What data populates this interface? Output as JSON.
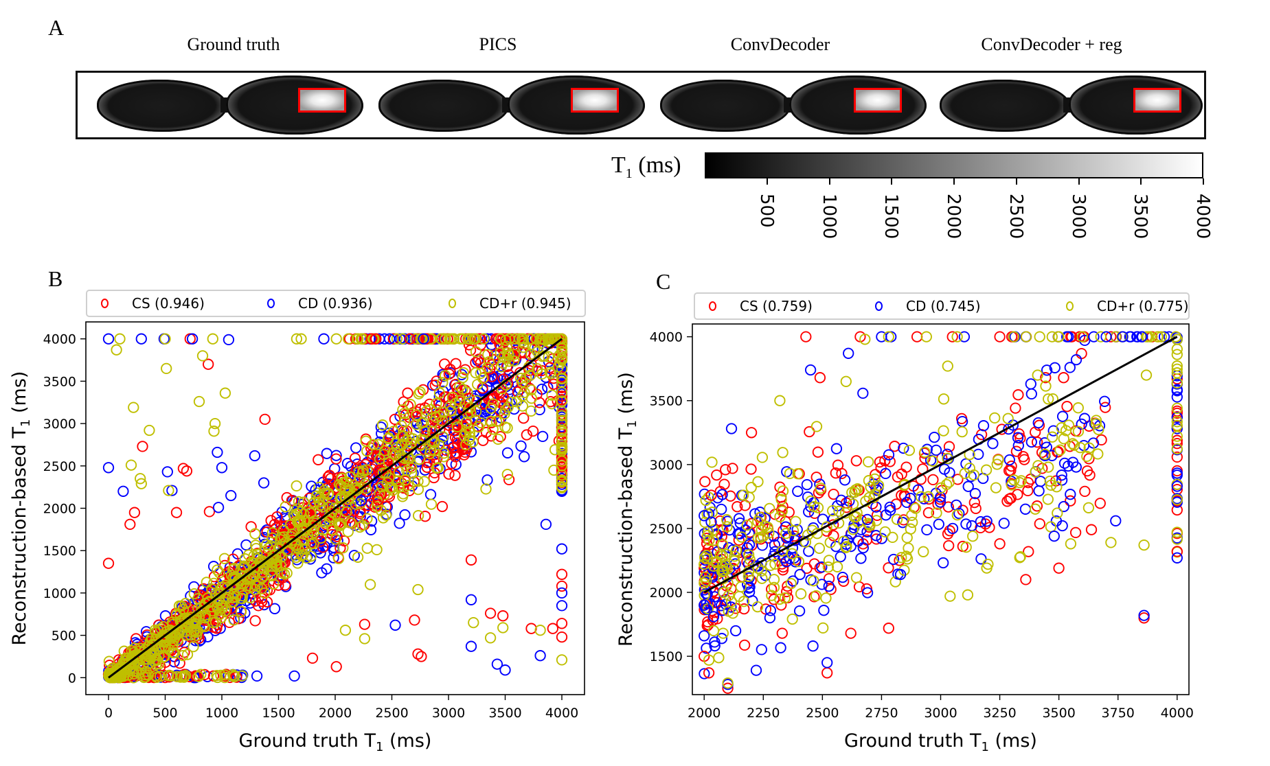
{
  "panel_a": {
    "letter": "A",
    "titles": [
      "Ground truth",
      "PICS",
      "ConvDecoder",
      "ConvDecoder + reg"
    ],
    "colorbar": {
      "label_main": "T",
      "label_sub": "1",
      "label_unit": "(ms)",
      "ticks": [
        "500",
        "1000",
        "1500",
        "2000",
        "2500",
        "3000",
        "3500",
        "4000"
      ],
      "range": [
        0,
        4000
      ],
      "colormap": "gray"
    },
    "roi_color": "#ff0000"
  },
  "chart_data": [
    {
      "panel": "B",
      "type": "scatter",
      "title": "",
      "xlabel": "Ground truth T1 (ms)",
      "ylabel": "Reconstruction-based T1 (ms)",
      "xlim": [
        -200,
        4200
      ],
      "ylim": [
        -200,
        4200
      ],
      "xticks": [
        0,
        500,
        1000,
        1500,
        2000,
        2500,
        3000,
        3500,
        4000
      ],
      "yticks": [
        0,
        500,
        1000,
        1500,
        2000,
        2500,
        3000,
        3500,
        4000
      ],
      "legend_position": "top (above plot, 3 columns)",
      "identity_line": {
        "from": [
          0,
          0
        ],
        "to": [
          4000,
          4000
        ],
        "color": "#000000"
      },
      "series": [
        {
          "name": "CS (0.946)",
          "label": "CS",
          "r": "0.946",
          "color": "#ff0000",
          "marker": "open-circle"
        },
        {
          "name": "CD (0.936)",
          "label": "CD",
          "r": "0.936",
          "color": "#0000ff",
          "marker": "open-circle"
        },
        {
          "name": "CD+r (0.945)",
          "label": "CD+r",
          "r": "0.945",
          "color": "#bfbf00",
          "marker": "open-circle"
        }
      ],
      "outliers": {
        "CS": [
          [
            720,
            4000
          ],
          [
            2320,
            4000
          ],
          [
            2360,
            4000
          ],
          [
            2660,
            4000
          ],
          [
            2800,
            4000
          ],
          [
            300,
            2730
          ],
          [
            660,
            2470
          ],
          [
            690,
            2440
          ],
          [
            880,
            3700
          ],
          [
            1380,
            3050
          ],
          [
            0,
            1350
          ],
          [
            230,
            1950
          ],
          [
            190,
            1810
          ],
          [
            600,
            1950
          ],
          [
            890,
            1960
          ],
          [
            2380,
            2100
          ],
          [
            3200,
            1390
          ],
          [
            3370,
            760
          ],
          [
            3480,
            730
          ],
          [
            3730,
            580
          ],
          [
            3920,
            580
          ],
          [
            4000,
            1220
          ],
          [
            4000,
            1080
          ],
          [
            4000,
            640
          ],
          [
            4000,
            480
          ],
          [
            1800,
            230
          ],
          [
            2010,
            130
          ],
          [
            2260,
            630
          ],
          [
            2700,
            680
          ],
          [
            2730,
            280
          ],
          [
            2760,
            250
          ]
        ],
        "CD": [
          [
            0,
            4000
          ],
          [
            290,
            4000
          ],
          [
            490,
            4000
          ],
          [
            740,
            4000
          ],
          [
            1060,
            3990
          ],
          [
            1900,
            4000
          ],
          [
            2480,
            4000
          ],
          [
            2780,
            4000
          ],
          [
            0,
            2480
          ],
          [
            130,
            2200
          ],
          [
            520,
            2430
          ],
          [
            560,
            2210
          ],
          [
            960,
            2660
          ],
          [
            1000,
            2480
          ],
          [
            970,
            2010
          ],
          [
            1290,
            2620
          ],
          [
            1080,
            2150
          ],
          [
            1370,
            2300
          ],
          [
            1790,
            2260
          ],
          [
            2230,
            2090
          ],
          [
            3200,
            370
          ],
          [
            3430,
            160
          ],
          [
            3500,
            90
          ],
          [
            3810,
            260
          ],
          [
            3200,
            920
          ],
          [
            3860,
            1810
          ],
          [
            4000,
            1520
          ],
          [
            4000,
            1000
          ],
          [
            4000,
            850
          ],
          [
            2530,
            620
          ],
          [
            1640,
            20
          ],
          [
            1310,
            20
          ]
        ],
        "CD+r": [
          [
            100,
            4000
          ],
          [
            500,
            4000
          ],
          [
            920,
            4000
          ],
          [
            1660,
            4000
          ],
          [
            2010,
            4000
          ],
          [
            2940,
            4000
          ],
          [
            70,
            3870
          ],
          [
            830,
            3800
          ],
          [
            510,
            3650
          ],
          [
            800,
            3260
          ],
          [
            220,
            3190
          ],
          [
            360,
            2920
          ],
          [
            930,
            2910
          ],
          [
            200,
            2510
          ],
          [
            280,
            2350
          ],
          [
            290,
            2290
          ],
          [
            530,
            2210
          ],
          [
            2760,
            2810
          ],
          [
            940,
            3000
          ],
          [
            1030,
            3360
          ],
          [
            1700,
            4000
          ],
          [
            3520,
            2400
          ],
          [
            3930,
            2450
          ],
          [
            4000,
            2240
          ],
          [
            4000,
            210
          ],
          [
            2090,
            560
          ],
          [
            2260,
            460
          ],
          [
            2730,
            1040
          ],
          [
            2310,
            1100
          ],
          [
            3220,
            650
          ],
          [
            3370,
            470
          ],
          [
            3480,
            590
          ],
          [
            3810,
            560
          ]
        ]
      },
      "dense_cloud": "Thousands of overlapping points clustered along identity line from 0 to 4000 ms; vertical column at x=4000 spanning ~2200-4000; horizontal row at y=4000 from ~2100-4000"
    },
    {
      "panel": "C",
      "type": "scatter",
      "title": "",
      "xlabel": "Ground truth T1 (ms)",
      "ylabel": "Reconstruction-based T1 (ms)",
      "xlim": [
        1950,
        4050
      ],
      "ylim": [
        1200,
        4100
      ],
      "xticks": [
        2000,
        2250,
        2500,
        2750,
        3000,
        3250,
        3500,
        3750,
        4000
      ],
      "yticks": [
        1500,
        2000,
        2500,
        3000,
        3500,
        4000
      ],
      "legend_position": "top (above plot, 3 columns)",
      "identity_line": {
        "from": [
          2000,
          2000
        ],
        "to": [
          4000,
          4000
        ],
        "color": "#000000"
      },
      "series": [
        {
          "name": "CS (0.759)",
          "label": "CS",
          "r": "0.759",
          "color": "#ff0000",
          "marker": "open-circle"
        },
        {
          "name": "CD (0.745)",
          "label": "CD",
          "r": "0.745",
          "color": "#0000ff",
          "marker": "open-circle"
        },
        {
          "name": "CD+r (0.775)",
          "label": "CD+r",
          "r": "0.775",
          "color": "#bfbf00",
          "marker": "open-circle"
        }
      ],
      "outliers": {
        "CS": [
          [
            2430,
            4000
          ],
          [
            2660,
            4000
          ],
          [
            2900,
            4000
          ],
          [
            3050,
            4000
          ],
          [
            3250,
            4000
          ],
          [
            2030,
            2760
          ],
          [
            2090,
            2960
          ],
          [
            2000,
            1500
          ],
          [
            2020,
            1370
          ],
          [
            2100,
            1250
          ],
          [
            2330,
            1680
          ],
          [
            2520,
            1370
          ],
          [
            2620,
            1680
          ],
          [
            2780,
            1720
          ],
          [
            3360,
            2100
          ],
          [
            3500,
            2190
          ],
          [
            3860,
            1800
          ],
          [
            4000,
            2320
          ],
          [
            3250,
            2380
          ],
          [
            3620,
            2950
          ],
          [
            3520,
            3680
          ],
          [
            2120,
            2970
          ],
          [
            2200,
            3250
          ],
          [
            2490,
            3680
          ]
        ],
        "CD": [
          [
            2750,
            4000
          ],
          [
            2790,
            4000
          ],
          [
            3100,
            4000
          ],
          [
            3700,
            4000
          ],
          [
            3770,
            4000
          ],
          [
            3850,
            4000
          ],
          [
            2000,
            2600
          ],
          [
            2030,
            2550
          ],
          [
            2000,
            1660
          ],
          [
            2040,
            1810
          ],
          [
            2100,
            1280
          ],
          [
            2220,
            1390
          ],
          [
            2460,
            1580
          ],
          [
            2520,
            1450
          ],
          [
            2690,
            2570
          ],
          [
            2830,
            2140
          ],
          [
            3480,
            2440
          ],
          [
            3740,
            2560
          ],
          [
            3860,
            1820
          ],
          [
            4000,
            2270
          ],
          [
            4000,
            2830
          ],
          [
            2610,
            3870
          ],
          [
            2450,
            3740
          ],
          [
            2000,
            1900
          ]
        ],
        "CD+r": [
          [
            2780,
            4000
          ],
          [
            2940,
            4000
          ],
          [
            3070,
            4000
          ],
          [
            3310,
            4000
          ],
          [
            3500,
            4000
          ],
          [
            3920,
            4000
          ],
          [
            2000,
            2220
          ],
          [
            2040,
            1700
          ],
          [
            2020,
            1470
          ],
          [
            2080,
            1680
          ],
          [
            2100,
            1290
          ],
          [
            2320,
            3500
          ],
          [
            2600,
            3650
          ],
          [
            3030,
            3770
          ],
          [
            3410,
            3700
          ],
          [
            3870,
            3700
          ],
          [
            3200,
            2220
          ],
          [
            3550,
            2380
          ],
          [
            3720,
            2390
          ],
          [
            3860,
            2370
          ],
          [
            4000,
            2470
          ],
          [
            3040,
            1970
          ],
          [
            2680,
            3980
          ]
        ]
      },
      "dense_cloud": "Broad cloud roughly from (2000,1900-2700) to (3500,2400-3800); vertical column at x=4000 from ~2200-4000; horizontal row at y=4000 near 3300-4000"
    }
  ]
}
